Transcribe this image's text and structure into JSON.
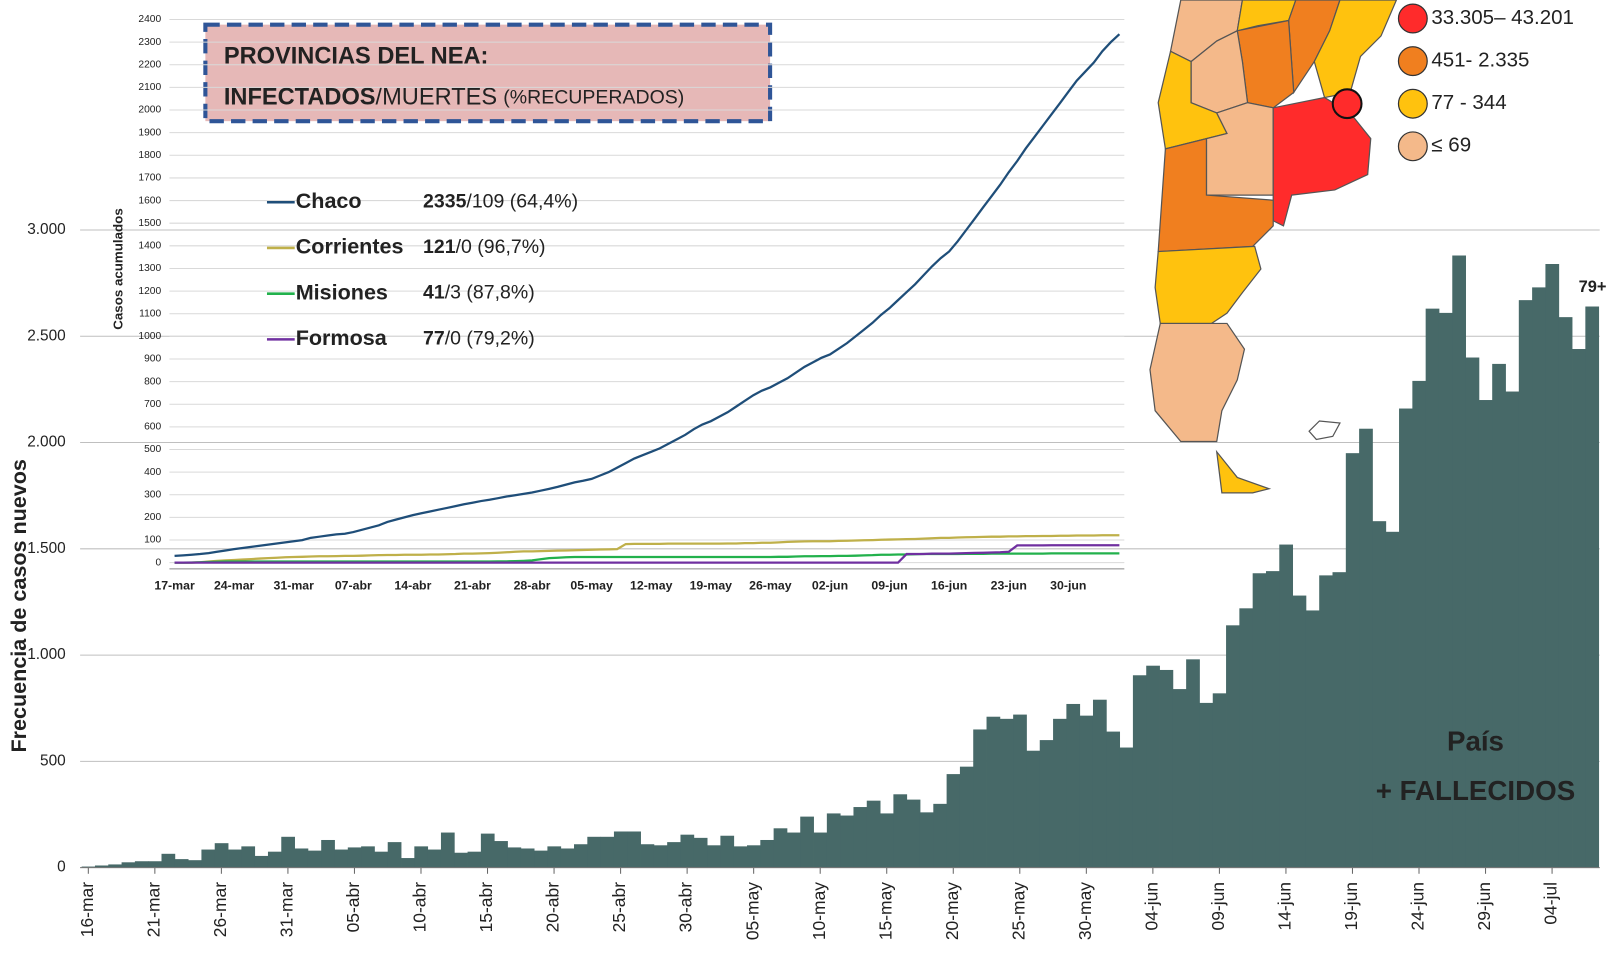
{
  "chart_data": [
    {
      "type": "bar",
      "y_label": "Frecuencia de casos nuevos",
      "color": "#476968",
      "ylim": [
        0,
        3000
      ],
      "yticks": [
        0,
        500,
        {
          "value": 1000,
          "label": "1.000"
        },
        {
          "value": 1500,
          "label": "1.500"
        },
        {
          "value": 2000,
          "label": "2.000"
        },
        {
          "value": 2500,
          "label": "2.500"
        },
        {
          "value": 3000,
          "label": "3.000"
        }
      ],
      "grid": true,
      "annotations": [
        "País",
        "+ FALLECIDOS",
        "79+"
      ],
      "categories": [
        "16-mar",
        null,
        null,
        null,
        null,
        "21-mar",
        null,
        null,
        null,
        null,
        "26-mar",
        null,
        null,
        null,
        null,
        "31-mar",
        null,
        null,
        null,
        null,
        "05-abr",
        null,
        null,
        null,
        null,
        "10-abr",
        null,
        null,
        null,
        null,
        "15-abr",
        null,
        null,
        null,
        null,
        "20-abr",
        null,
        null,
        null,
        null,
        "25-abr",
        null,
        null,
        null,
        null,
        "30-abr",
        null,
        null,
        null,
        null,
        "05-may",
        null,
        null,
        null,
        null,
        "10-may",
        null,
        null,
        null,
        null,
        "15-may",
        null,
        null,
        null,
        null,
        "20-may",
        null,
        null,
        null,
        null,
        "25-may",
        null,
        null,
        null,
        null,
        "30-may",
        null,
        null,
        null,
        null,
        "04-jun",
        null,
        null,
        null,
        null,
        "09-jun",
        null,
        null,
        null,
        null,
        "14-jun",
        null,
        null,
        null,
        null,
        "19-jun",
        null,
        null,
        null,
        null,
        "24-jun",
        null,
        null,
        null,
        null,
        "29-jun",
        null,
        null,
        null,
        null,
        "04-jul",
        null,
        null,
        null
      ],
      "values": [
        5,
        10,
        15,
        25,
        30,
        30,
        65,
        40,
        35,
        85,
        115,
        85,
        100,
        55,
        75,
        145,
        90,
        80,
        130,
        85,
        95,
        100,
        75,
        120,
        45,
        100,
        85,
        165,
        70,
        75,
        160,
        125,
        95,
        90,
        80,
        100,
        90,
        110,
        145,
        145,
        170,
        170,
        110,
        105,
        120,
        155,
        140,
        105,
        150,
        100,
        105,
        130,
        185,
        165,
        240,
        165,
        255,
        245,
        285,
        315,
        255,
        345,
        320,
        260,
        300,
        440,
        475,
        650,
        710,
        700,
        720,
        550,
        600,
        700,
        770,
        715,
        790,
        640,
        565,
        905,
        950,
        930,
        840,
        980,
        775,
        820,
        1140,
        1220,
        1385,
        1395,
        1520,
        1280,
        1210,
        1375,
        1390,
        1950,
        2065,
        1630,
        1580,
        2160,
        2290,
        2630,
        2610,
        2880,
        2400,
        2200,
        2370,
        2240,
        2670,
        2730,
        2840,
        2590,
        2440,
        2640
      ]
    },
    {
      "type": "line",
      "title_lines": [
        "PROVINCIAS DEL NEA:",
        "INFECTADOS",
        "/MUERTES",
        "(%RECUPERADOS)"
      ],
      "y_label": "Casos acumulados",
      "ylim": [
        0,
        2400
      ],
      "yticks": [
        0,
        100,
        200,
        300,
        400,
        500,
        600,
        700,
        800,
        900,
        1000,
        1100,
        1200,
        1300,
        1400,
        1500,
        1600,
        1700,
        1800,
        1900,
        2000,
        2100,
        2200,
        2300,
        2400
      ],
      "grid": true,
      "categories": [
        "17-mar",
        null,
        null,
        null,
        null,
        null,
        null,
        "24-mar",
        null,
        null,
        null,
        null,
        null,
        null,
        "31-mar",
        null,
        null,
        null,
        null,
        null,
        null,
        "07-abr",
        null,
        null,
        null,
        null,
        null,
        null,
        "14-abr",
        null,
        null,
        null,
        null,
        null,
        null,
        "21-abr",
        null,
        null,
        null,
        null,
        null,
        null,
        "28-abr",
        null,
        null,
        null,
        null,
        null,
        null,
        "05-may",
        null,
        null,
        null,
        null,
        null,
        null,
        "12-may",
        null,
        null,
        null,
        null,
        null,
        null,
        "19-may",
        null,
        null,
        null,
        null,
        null,
        null,
        "26-may",
        null,
        null,
        null,
        null,
        null,
        null,
        "02-jun",
        null,
        null,
        null,
        null,
        null,
        null,
        "09-jun",
        null,
        null,
        null,
        null,
        null,
        null,
        "16-jun",
        null,
        null,
        null,
        null,
        null,
        null,
        "23-jun",
        null,
        null,
        null,
        null,
        null,
        null,
        "30-jun",
        null,
        null,
        null,
        null,
        null,
        null
      ],
      "series": [
        {
          "name": "Chaco",
          "color": "#1f4e79",
          "summary_bold": "2335",
          "summary": "/109 (64,4%)",
          "values": [
            30,
            32,
            35,
            38,
            42,
            48,
            54,
            60,
            65,
            70,
            75,
            80,
            85,
            90,
            95,
            100,
            110,
            115,
            120,
            125,
            128,
            135,
            145,
            155,
            165,
            180,
            190,
            200,
            210,
            218,
            226,
            234,
            242,
            250,
            258,
            265,
            272,
            278,
            285,
            292,
            298,
            304,
            310,
            318,
            326,
            335,
            345,
            355,
            362,
            370,
            385,
            400,
            420,
            440,
            460,
            475,
            490,
            505,
            525,
            545,
            565,
            590,
            610,
            625,
            645,
            665,
            690,
            715,
            740,
            760,
            775,
            795,
            815,
            840,
            865,
            885,
            905,
            920,
            945,
            970,
            1000,
            1030,
            1060,
            1095,
            1125,
            1160,
            1195,
            1230,
            1270,
            1310,
            1345,
            1375,
            1420,
            1470,
            1520,
            1570,
            1620,
            1670,
            1725,
            1775,
            1830,
            1880,
            1930,
            1980,
            2030,
            2080,
            2130,
            2170,
            2210,
            2260,
            2300,
            2335
          ]
        },
        {
          "name": "Corrientes",
          "color": "#bfb04a",
          "summary_bold": "121",
          "summary": "/0 (96,7%)",
          "values": [
            0,
            0,
            0,
            2,
            5,
            8,
            10,
            12,
            14,
            16,
            18,
            20,
            22,
            24,
            25,
            26,
            27,
            28,
            28,
            29,
            30,
            30,
            31,
            32,
            33,
            34,
            34,
            35,
            35,
            35,
            36,
            36,
            37,
            38,
            40,
            40,
            41,
            42,
            44,
            46,
            48,
            50,
            50,
            51,
            52,
            53,
            54,
            55,
            56,
            57,
            58,
            59,
            60,
            82,
            83,
            83,
            83,
            83,
            84,
            84,
            84,
            84,
            84,
            84,
            84,
            85,
            85,
            86,
            86,
            88,
            88,
            90,
            92,
            93,
            94,
            95,
            95,
            95,
            96,
            97,
            98,
            99,
            100,
            101,
            102,
            103,
            104,
            105,
            106,
            108,
            110,
            110,
            111,
            112,
            113,
            114,
            115,
            115,
            116,
            116,
            117,
            117,
            118,
            118,
            119,
            119,
            120,
            120,
            120,
            121,
            121,
            121
          ]
        },
        {
          "name": "Misiones",
          "color": "#22b14c",
          "summary_bold": "41",
          "summary": "/3 (87,8%)",
          "values": [
            0,
            0,
            1,
            2,
            3,
            4,
            5,
            5,
            5,
            5,
            5,
            5,
            5,
            5,
            5,
            5,
            5,
            5,
            5,
            5,
            5,
            5,
            5,
            5,
            5,
            5,
            5,
            5,
            5,
            5,
            5,
            5,
            5,
            5,
            5,
            5,
            5,
            5,
            6,
            6,
            7,
            8,
            10,
            15,
            20,
            22,
            24,
            25,
            25,
            25,
            25,
            25,
            25,
            25,
            25,
            25,
            25,
            25,
            25,
            25,
            25,
            25,
            25,
            25,
            25,
            25,
            25,
            25,
            25,
            25,
            25,
            26,
            26,
            27,
            28,
            28,
            29,
            29,
            30,
            30,
            31,
            32,
            33,
            35,
            35,
            36,
            36,
            37,
            38,
            38,
            38,
            38,
            38,
            39,
            39,
            39,
            40,
            40,
            40,
            40,
            40,
            40,
            40,
            41,
            41,
            41,
            41,
            41,
            41,
            41,
            41,
            41
          ]
        },
        {
          "name": "Formosa",
          "color": "#7030a0",
          "summary_bold": "77",
          "summary": "/0 (79,2%)",
          "values": [
            0,
            0,
            0,
            0,
            0,
            0,
            0,
            0,
            0,
            0,
            0,
            0,
            0,
            0,
            0,
            0,
            0,
            0,
            0,
            0,
            0,
            0,
            0,
            0,
            0,
            0,
            0,
            0,
            0,
            0,
            0,
            0,
            0,
            0,
            0,
            0,
            0,
            0,
            0,
            0,
            0,
            0,
            0,
            0,
            0,
            0,
            0,
            0,
            0,
            0,
            0,
            0,
            0,
            0,
            0,
            0,
            0,
            0,
            0,
            0,
            0,
            0,
            0,
            0,
            0,
            0,
            0,
            0,
            0,
            0,
            0,
            0,
            0,
            0,
            0,
            0,
            0,
            0,
            0,
            0,
            0,
            0,
            0,
            0,
            0,
            0,
            38,
            38,
            38,
            40,
            40,
            40,
            41,
            42,
            43,
            44,
            45,
            46,
            48,
            76,
            76,
            76,
            76,
            77,
            77,
            77,
            77,
            77,
            77,
            77,
            77,
            77
          ]
        }
      ]
    }
  ],
  "map_legend": [
    {
      "label": "33.305– 43.201",
      "color": "#ff2b2b"
    },
    {
      "label": "451- 2.335",
      "color": "#f07f1f"
    },
    {
      "label": "77 - 344",
      "color": "#ffc20e"
    },
    {
      "label": "≤ 69",
      "color": "#f4b98a"
    }
  ]
}
